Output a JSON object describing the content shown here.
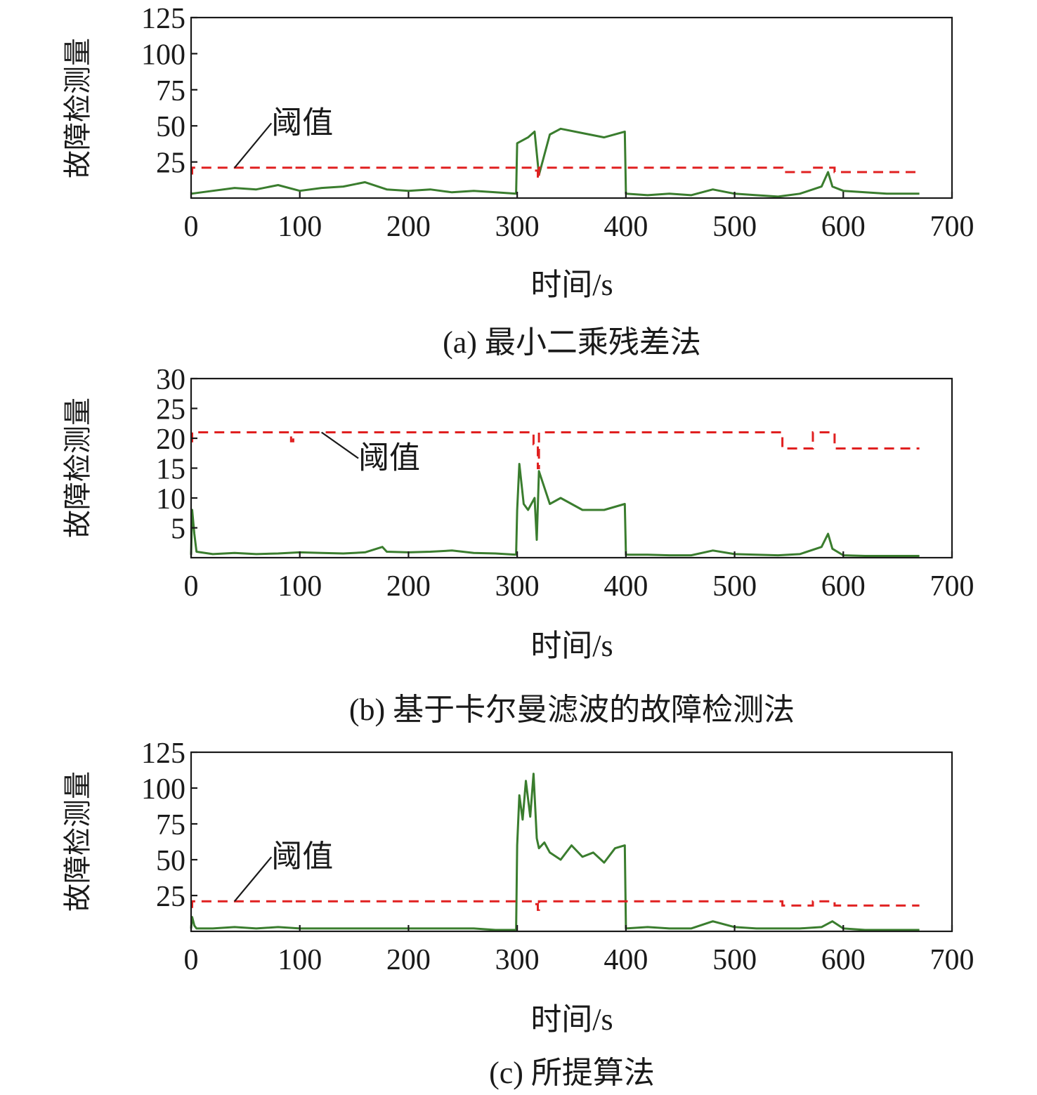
{
  "colors": {
    "signal": "#3a7d2e",
    "threshold": "#e02020"
  },
  "chart_data": [
    {
      "type": "line",
      "caption": "(a) 最小二乘残差法",
      "xlabel": "时间/s",
      "ylabel": "故障检测量",
      "xlim": [
        0,
        700
      ],
      "ylim": [
        0,
        125
      ],
      "xticks": [
        "0",
        "100",
        "200",
        "300",
        "400",
        "500",
        "600",
        "700"
      ],
      "yticks": [
        "25",
        "50",
        "75",
        "100",
        "125"
      ],
      "annotation": {
        "text": "阈值",
        "target": [
          40,
          21
        ],
        "text_at": [
          70,
          45
        ]
      },
      "series": [
        {
          "name": "故障检测量",
          "x": [
            0,
            20,
            40,
            60,
            80,
            100,
            120,
            140,
            160,
            180,
            200,
            220,
            240,
            260,
            280,
            299,
            300,
            310,
            316,
            320,
            330,
            340,
            360,
            380,
            399,
            400,
            420,
            440,
            460,
            480,
            500,
            520,
            540,
            560,
            580,
            586,
            590,
            600,
            620,
            640,
            660,
            670
          ],
          "y": [
            3,
            5,
            7,
            6,
            9,
            5,
            7,
            8,
            11,
            6,
            5,
            6,
            4,
            5,
            4,
            3,
            38,
            42,
            46,
            16,
            44,
            48,
            45,
            42,
            46,
            3,
            2,
            3,
            2,
            6,
            3,
            2,
            1,
            3,
            8,
            18,
            8,
            5,
            4,
            3,
            3,
            3
          ]
        },
        {
          "name": "阈值",
          "x": [
            0,
            1,
            1,
            92,
            92,
            94,
            94,
            315,
            315,
            319,
            319,
            320,
            320,
            544,
            544,
            572,
            572,
            592,
            592,
            670
          ],
          "y": [
            17,
            17,
            21,
            21,
            20,
            20,
            21,
            21,
            19,
            19,
            13,
            13,
            21,
            21,
            18,
            18,
            21,
            21,
            18,
            18
          ]
        }
      ]
    },
    {
      "type": "line",
      "caption": "(b) 基于卡尔曼滤波的故障检测法",
      "xlabel": "时间/s",
      "ylabel": "故障检测量",
      "xlim": [
        0,
        700
      ],
      "ylim": [
        0,
        30
      ],
      "xticks": [
        "0",
        "100",
        "200",
        "300",
        "400",
        "500",
        "600",
        "700"
      ],
      "yticks": [
        "5",
        "10",
        "15",
        "20",
        "25",
        "30"
      ],
      "annotation": {
        "text": "阈值",
        "target": [
          120,
          21
        ],
        "text_at": [
          150,
          15
        ]
      },
      "series": [
        {
          "name": "故障检测量",
          "x": [
            0,
            1,
            3,
            5,
            20,
            40,
            60,
            80,
            100,
            120,
            140,
            160,
            176,
            180,
            200,
            220,
            240,
            260,
            280,
            299,
            300,
            302,
            306,
            310,
            316,
            318,
            320,
            330,
            340,
            360,
            380,
            399,
            400,
            420,
            440,
            460,
            480,
            500,
            520,
            540,
            560,
            580,
            586,
            590,
            600,
            620,
            640,
            660,
            670
          ],
          "y": [
            0.5,
            8,
            4,
            1,
            0.6,
            0.8,
            0.6,
            0.7,
            0.9,
            0.8,
            0.7,
            0.9,
            1.8,
            1,
            0.9,
            1,
            1.2,
            0.8,
            0.7,
            0.5,
            8,
            15.7,
            9,
            8,
            10,
            3,
            14.5,
            9,
            10,
            8,
            8,
            9,
            0.5,
            0.5,
            0.4,
            0.4,
            1.2,
            0.6,
            0.5,
            0.4,
            0.6,
            1.8,
            4,
            1.5,
            0.4,
            0.3,
            0.3,
            0.3,
            0.3
          ]
        },
        {
          "name": "阈值",
          "x": [
            0,
            1,
            1,
            92,
            92,
            94,
            94,
            315,
            315,
            319,
            319,
            320,
            320,
            544,
            544,
            572,
            572,
            592,
            592,
            670
          ],
          "y": [
            19.5,
            19.5,
            21,
            21,
            19.5,
            19.5,
            21,
            21,
            19,
            19,
            15,
            15,
            21,
            21,
            18.3,
            18.3,
            21,
            21,
            18.3,
            18.3
          ]
        }
      ]
    },
    {
      "type": "line",
      "caption": "(c) 所提算法",
      "xlabel": "时间/s",
      "ylabel": "故障检测量",
      "xlim": [
        0,
        700
      ],
      "ylim": [
        0,
        125
      ],
      "xticks": [
        "0",
        "100",
        "200",
        "300",
        "400",
        "500",
        "600",
        "700"
      ],
      "yticks": [
        "25",
        "50",
        "75",
        "100",
        "125"
      ],
      "annotation": {
        "text": "阈值",
        "target": [
          40,
          21
        ],
        "text_at": [
          70,
          45
        ]
      },
      "series": [
        {
          "name": "故障检测量",
          "x": [
            0,
            1,
            3,
            5,
            20,
            40,
            60,
            80,
            100,
            120,
            140,
            160,
            180,
            200,
            220,
            240,
            260,
            280,
            299,
            300,
            302,
            305,
            308,
            312,
            315,
            318,
            320,
            325,
            330,
            340,
            350,
            360,
            370,
            380,
            390,
            399,
            400,
            420,
            440,
            460,
            480,
            500,
            520,
            540,
            560,
            580,
            590,
            600,
            620,
            640,
            660,
            670
          ],
          "y": [
            2,
            10,
            4,
            2,
            2,
            3,
            2,
            3,
            2,
            2,
            2,
            2,
            2,
            2,
            2,
            2,
            2,
            1,
            1,
            60,
            95,
            78,
            105,
            80,
            110,
            65,
            58,
            62,
            55,
            50,
            60,
            52,
            55,
            48,
            58,
            60,
            2,
            3,
            2,
            2,
            7,
            3,
            2,
            2,
            2,
            3,
            7,
            2,
            1,
            1,
            1,
            1
          ]
        },
        {
          "name": "阈值",
          "x": [
            0,
            1,
            1,
            92,
            92,
            94,
            94,
            315,
            315,
            319,
            319,
            320,
            320,
            544,
            544,
            572,
            572,
            592,
            592,
            670
          ],
          "y": [
            17,
            17,
            21,
            21,
            20,
            20,
            21,
            21,
            19,
            19,
            15,
            15,
            21,
            21,
            18,
            18,
            21,
            21,
            18,
            18
          ]
        }
      ]
    }
  ]
}
